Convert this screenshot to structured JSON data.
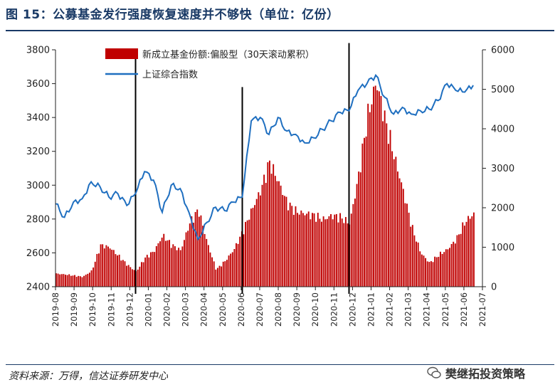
{
  "header": {
    "title": "图 15：公募基金发行强度恢复速度并不够快（单位：亿份）"
  },
  "footer": {
    "source": "资料来源：万得，信达证券研发中心",
    "watermark": "樊继拓投资策略"
  },
  "colors": {
    "bars": "#c00000",
    "line": "#1f6fc0",
    "title": "#1a3a66",
    "markers": "#000000"
  },
  "icons": {
    "watermark": "wechat-icon"
  },
  "chart_data": {
    "type": "bar+line",
    "title": "",
    "legend_position": "top-center",
    "grid": false,
    "x_labels": [
      "2019-08",
      "2019-09",
      "2019-10",
      "2019-11",
      "2019-12",
      "2020-01",
      "2020-02",
      "2020-03",
      "2020-04",
      "2020-05",
      "2020-06",
      "2020-07",
      "2020-08",
      "2020-09",
      "2020-10",
      "2020-11",
      "2020-12",
      "2021-01",
      "2021-02",
      "2021-03",
      "2021-04",
      "2021-05",
      "2021-06",
      "2021-07"
    ],
    "y_left": {
      "min": 2400,
      "max": 3800,
      "ticks": [
        2400,
        2600,
        2800,
        3000,
        3200,
        3400,
        3600,
        3800
      ]
    },
    "y_right": {
      "min": 0,
      "max": 6000,
      "ticks": [
        0,
        1000,
        2000,
        3000,
        4000,
        5000,
        6000
      ]
    },
    "vertical_markers": [
      {
        "x": 2019.958,
        "left_value": 3770
      },
      {
        "x": 2020.458,
        "left_value": 3580
      },
      {
        "x": 2020.958,
        "left_value": 3840
      }
    ],
    "series": [
      {
        "name": "新成立基金份额:偏股型（30天滚动累积）",
        "kind": "bar",
        "axis": "right",
        "points": [
          [
            2019.583,
            330
          ],
          [
            2019.625,
            310
          ],
          [
            2019.667,
            280
          ],
          [
            2019.708,
            250
          ],
          [
            2019.75,
            400
          ],
          [
            2019.792,
            1050
          ],
          [
            2019.833,
            1000
          ],
          [
            2019.875,
            780
          ],
          [
            2019.917,
            550
          ],
          [
            2019.958,
            380
          ],
          [
            2020.0,
            730
          ],
          [
            2020.042,
            900
          ],
          [
            2020.083,
            1300
          ],
          [
            2020.125,
            1050
          ],
          [
            2020.167,
            920
          ],
          [
            2020.208,
            1600
          ],
          [
            2020.25,
            1950
          ],
          [
            2020.292,
            1100
          ],
          [
            2020.333,
            430
          ],
          [
            2020.375,
            650
          ],
          [
            2020.417,
            950
          ],
          [
            2020.458,
            1400
          ],
          [
            2020.5,
            1950
          ],
          [
            2020.542,
            2450
          ],
          [
            2020.583,
            3150
          ],
          [
            2020.625,
            2650
          ],
          [
            2020.667,
            2100
          ],
          [
            2020.708,
            1900
          ],
          [
            2020.75,
            1850
          ],
          [
            2020.792,
            1800
          ],
          [
            2020.833,
            1700
          ],
          [
            2020.875,
            1800
          ],
          [
            2020.917,
            1750
          ],
          [
            2020.958,
            1600
          ],
          [
            2021.0,
            2800
          ],
          [
            2021.042,
            4300
          ],
          [
            2021.083,
            5200
          ],
          [
            2021.125,
            4200
          ],
          [
            2021.167,
            3300
          ],
          [
            2021.208,
            2450
          ],
          [
            2021.25,
            1500
          ],
          [
            2021.292,
            850
          ],
          [
            2021.333,
            600
          ],
          [
            2021.375,
            800
          ],
          [
            2021.417,
            950
          ],
          [
            2021.458,
            1200
          ],
          [
            2021.5,
            1650
          ],
          [
            2021.54,
            1850
          ]
        ]
      },
      {
        "name": "上证综合指数",
        "kind": "line",
        "axis": "left",
        "points": [
          [
            2019.583,
            2890
          ],
          [
            2019.625,
            2810
          ],
          [
            2019.667,
            2900
          ],
          [
            2019.708,
            2920
          ],
          [
            2019.75,
            3020
          ],
          [
            2019.792,
            2990
          ],
          [
            2019.833,
            2930
          ],
          [
            2019.875,
            2950
          ],
          [
            2019.917,
            2880
          ],
          [
            2019.958,
            2950
          ],
          [
            2020.0,
            3080
          ],
          [
            2020.042,
            3030
          ],
          [
            2020.083,
            2840
          ],
          [
            2020.125,
            3000
          ],
          [
            2020.167,
            2980
          ],
          [
            2020.208,
            2840
          ],
          [
            2020.25,
            2680
          ],
          [
            2020.292,
            2780
          ],
          [
            2020.333,
            2870
          ],
          [
            2020.375,
            2850
          ],
          [
            2020.417,
            2900
          ],
          [
            2020.458,
            2930
          ],
          [
            2020.5,
            3380
          ],
          [
            2020.542,
            3400
          ],
          [
            2020.583,
            3300
          ],
          [
            2020.625,
            3400
          ],
          [
            2020.667,
            3320
          ],
          [
            2020.708,
            3300
          ],
          [
            2020.75,
            3250
          ],
          [
            2020.792,
            3280
          ],
          [
            2020.833,
            3330
          ],
          [
            2020.875,
            3380
          ],
          [
            2020.917,
            3430
          ],
          [
            2020.958,
            3440
          ],
          [
            2021.0,
            3560
          ],
          [
            2021.042,
            3600
          ],
          [
            2021.083,
            3650
          ],
          [
            2021.125,
            3520
          ],
          [
            2021.167,
            3420
          ],
          [
            2021.208,
            3460
          ],
          [
            2021.25,
            3420
          ],
          [
            2021.292,
            3440
          ],
          [
            2021.333,
            3450
          ],
          [
            2021.375,
            3500
          ],
          [
            2021.417,
            3600
          ],
          [
            2021.458,
            3560
          ],
          [
            2021.5,
            3550
          ],
          [
            2021.54,
            3590
          ]
        ]
      }
    ]
  }
}
